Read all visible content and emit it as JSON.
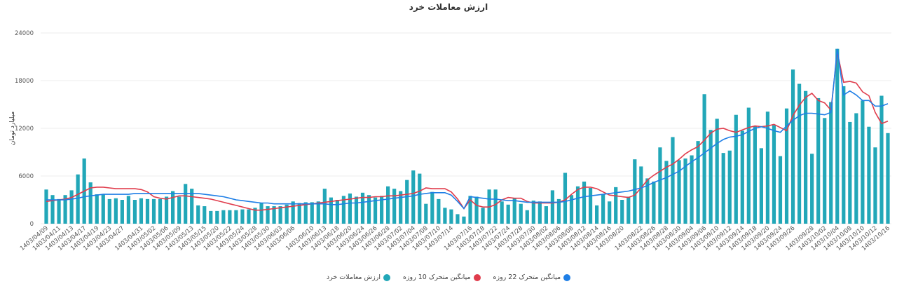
{
  "chart_data": {
    "type": "bar",
    "title": "ارزش معاملات خرد",
    "xlabel": "",
    "ylabel": "میلیارد تومان",
    "ylim": [
      0,
      24000
    ],
    "yticks": [
      0,
      6000,
      12000,
      18000,
      24000
    ],
    "grid": true,
    "legend_position": "bottom",
    "x_tick_labels": [
      "1403/04/09",
      "1403/04/11",
      "1403/04/13",
      "1403/04/17",
      "1403/04/19",
      "1403/04/23",
      "1403/04/27",
      "1403/04/31",
      "1403/05/02",
      "1403/05/06",
      "1403/05/09",
      "1403/05/13",
      "1403/05/15",
      "1403/05/20",
      "1403/05/22",
      "1403/05/24",
      "1403/05/28",
      "1403/05/30",
      "1403/06/03",
      "1403/06/06",
      "1403/06/10",
      "1403/06/13",
      "1403/06/18",
      "1403/06/20",
      "1403/06/24",
      "1403/06/26",
      "1403/06/28",
      "1403/07/02",
      "1403/07/04",
      "1403/07/08",
      "1403/07/10",
      "1403/07/14",
      "1403/07/16",
      "1403/07/18",
      "1403/07/22",
      "1403/07/24",
      "1403/07/28",
      "1403/07/30",
      "1403/08/02",
      "1403/08/06",
      "1403/08/08",
      "1403/08/12",
      "1403/08/14",
      "1403/08/16",
      "1403/08/20",
      "1403/08/22",
      "1403/08/26",
      "1403/08/28",
      "1403/08/30",
      "1403/09/04",
      "1403/09/06",
      "1403/09/10",
      "1403/09/12",
      "1403/09/14",
      "1403/09/18",
      "1403/09/20",
      "1403/09/24",
      "1403/09/26",
      "1403/09/28",
      "1403/10/02",
      "1403/10/04",
      "1403/10/08",
      "1403/10/10",
      "1403/10/12",
      "1403/10/16"
    ],
    "series": [
      {
        "name": "ارزش معاملات خرد",
        "type": "bar",
        "color": "#22a7b8",
        "values": [
          4300,
          3600,
          3100,
          3600,
          4200,
          6200,
          8200,
          5200,
          3700,
          3700,
          3100,
          3200,
          3000,
          3500,
          3000,
          3200,
          3100,
          3100,
          3100,
          3400,
          4100,
          3400,
          5000,
          4400,
          2300,
          2200,
          1600,
          1600,
          1700,
          1700,
          1700,
          1800,
          1800,
          2000,
          2600,
          2200,
          2200,
          2200,
          2400,
          2800,
          2600,
          2700,
          2700,
          2800,
          4400,
          3300,
          3000,
          3500,
          3800,
          3400,
          3900,
          3600,
          3300,
          3500,
          4700,
          4400,
          4100,
          5500,
          6700,
          6300,
          2500,
          4000,
          3100,
          2000,
          1800,
          1200,
          900,
          3500,
          3400,
          2000,
          4300,
          4300,
          2800,
          2400,
          3200,
          2500,
          1700,
          2900,
          2800,
          2200,
          4200,
          3100,
          6400,
          3600,
          4700,
          5300,
          4500,
          2300,
          3700,
          2800,
          4600,
          3000,
          3400,
          8100,
          7200,
          5700,
          5300,
          9600,
          7900,
          10900,
          8000,
          8200,
          8600,
          10400,
          16300,
          11800,
          13200,
          8900,
          9200,
          13700,
          11700,
          14600,
          12300,
          9500,
          14100,
          12400,
          8500,
          14500,
          19400,
          17600,
          16700,
          8800,
          15800,
          13300,
          15300,
          22000,
          17300,
          12800,
          13900,
          15500,
          12200,
          9600,
          16100,
          11400
        ]
      },
      {
        "name": "میانگین متحرک 10 روزه",
        "type": "line",
        "color": "#e03c4c",
        "values": [
          2800,
          2900,
          3000,
          3100,
          3300,
          3700,
          4100,
          4500,
          4600,
          4600,
          4500,
          4400,
          4400,
          4400,
          4400,
          4300,
          4000,
          3400,
          3200,
          3100,
          3300,
          3500,
          3500,
          3400,
          3300,
          3200,
          3100,
          2900,
          2700,
          2500,
          2300,
          2100,
          1900,
          1700,
          1700,
          1800,
          1900,
          2000,
          2100,
          2200,
          2300,
          2400,
          2500,
          2600,
          2700,
          2800,
          2900,
          3000,
          3100,
          3200,
          3300,
          3300,
          3400,
          3400,
          3500,
          3500,
          3600,
          3700,
          3800,
          4100,
          4500,
          4400,
          4400,
          4400,
          4000,
          3100,
          1900,
          3000,
          2300,
          2100,
          2100,
          2400,
          3000,
          3300,
          3200,
          3200,
          2800,
          2600,
          2600,
          2600,
          2600,
          2700,
          3000,
          3700,
          4300,
          4600,
          4600,
          4400,
          4000,
          3600,
          3500,
          3400,
          3300,
          3600,
          4500,
          5500,
          6100,
          6600,
          7100,
          7500,
          8100,
          8800,
          9300,
          9700,
          10500,
          11400,
          11900,
          12000,
          11700,
          11500,
          11800,
          12100,
          12300,
          12200,
          12300,
          12500,
          12100,
          11700,
          13600,
          14900,
          15900,
          16400,
          15500,
          15200,
          14300,
          21600,
          17800,
          17900,
          17700,
          16600,
          16100,
          14000,
          12600,
          12900
        ]
      },
      {
        "name": "میانگین متحرک 22 روزه",
        "type": "line",
        "color": "#1f7fe6",
        "values": [
          3000,
          3000,
          3000,
          3000,
          3100,
          3200,
          3400,
          3500,
          3600,
          3700,
          3700,
          3700,
          3700,
          3700,
          3800,
          3800,
          3800,
          3800,
          3800,
          3800,
          3800,
          3800,
          3800,
          3800,
          3800,
          3700,
          3600,
          3500,
          3400,
          3200,
          3000,
          2900,
          2800,
          2700,
          2600,
          2600,
          2500,
          2500,
          2500,
          2500,
          2500,
          2500,
          2500,
          2500,
          2500,
          2400,
          2400,
          2500,
          2600,
          2600,
          2700,
          2800,
          2900,
          3000,
          3100,
          3200,
          3300,
          3400,
          3500,
          3700,
          3800,
          3900,
          3900,
          3900,
          3600,
          2800,
          1900,
          3400,
          3300,
          3200,
          3100,
          3100,
          3000,
          2900,
          2900,
          2800,
          2700,
          2700,
          2700,
          2700,
          2700,
          2700,
          2800,
          3000,
          3200,
          3400,
          3500,
          3600,
          3700,
          3800,
          3900,
          4000,
          4100,
          4300,
          4500,
          4800,
          5200,
          5500,
          5800,
          6200,
          6600,
          7200,
          7800,
          8300,
          8900,
          9500,
          10100,
          10600,
          10900,
          11000,
          11200,
          11600,
          12000,
          12200,
          12000,
          11700,
          11500,
          12300,
          13000,
          13600,
          13900,
          13900,
          13800,
          13700,
          14000,
          22000,
          16200,
          16700,
          16200,
          15500,
          15500,
          14800,
          14800,
          15100
        ]
      }
    ]
  },
  "legend": {
    "items": [
      {
        "label": "میانگین متحرک 22 روزه",
        "color": "#1f7fe6"
      },
      {
        "label": "میانگین متحرک 10 روزه",
        "color": "#e03c4c"
      },
      {
        "label": "ارزش معاملات خرد",
        "color": "#22a7b8"
      }
    ]
  }
}
